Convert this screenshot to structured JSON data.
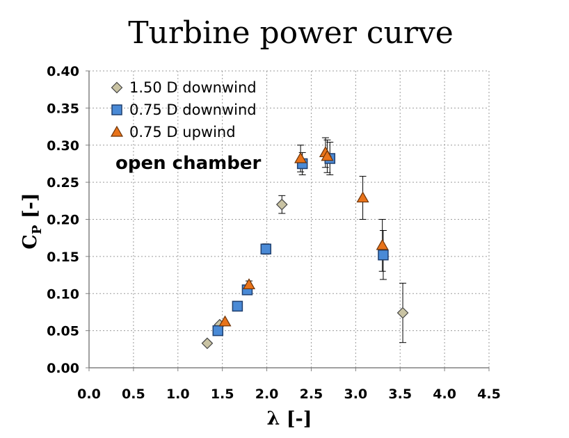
{
  "chart_data": {
    "type": "scatter",
    "title": "Turbine power curve",
    "xlabel": "λ [-]",
    "ylabel_main": "C",
    "ylabel_sub": "P",
    "ylabel_tail": " [-]",
    "xlim": [
      0.0,
      4.5
    ],
    "ylim": [
      0.0,
      0.4
    ],
    "x_ticks": [
      "0.0",
      "0.5",
      "1.0",
      "1.5",
      "2.0",
      "2.5",
      "3.0",
      "3.5",
      "4.0",
      "4.5"
    ],
    "y_ticks": [
      "0.00",
      "0.05",
      "0.10",
      "0.15",
      "0.20",
      "0.25",
      "0.30",
      "0.35",
      "0.40"
    ],
    "grid": "dotted",
    "legend_position": "top-left",
    "annotation": "open chamber",
    "series": [
      {
        "name": "1.50 D downwind",
        "marker": "diamond",
        "color": "#c9c3a3",
        "points": [
          {
            "x": 1.33,
            "y": 0.033
          },
          {
            "x": 1.47,
            "y": 0.058
          },
          {
            "x": 2.17,
            "y": 0.22,
            "err": 0.012
          },
          {
            "x": 3.53,
            "y": 0.074,
            "err": 0.04
          }
        ]
      },
      {
        "name": "0.75 D downwind",
        "marker": "square",
        "color": "#4a8ad6",
        "points": [
          {
            "x": 1.45,
            "y": 0.05
          },
          {
            "x": 1.67,
            "y": 0.083
          },
          {
            "x": 1.78,
            "y": 0.105
          },
          {
            "x": 1.99,
            "y": 0.16,
            "err": 0.007
          },
          {
            "x": 2.4,
            "y": 0.275,
            "err": 0.015
          },
          {
            "x": 2.71,
            "y": 0.282,
            "err": 0.022
          },
          {
            "x": 3.31,
            "y": 0.152,
            "err": 0.033
          }
        ]
      },
      {
        "name": "0.75 D upwind",
        "marker": "triangle",
        "color": "#e8731a",
        "points": [
          {
            "x": 1.53,
            "y": 0.062
          },
          {
            "x": 1.8,
            "y": 0.112,
            "err": 0.005
          },
          {
            "x": 2.38,
            "y": 0.282,
            "err": 0.018
          },
          {
            "x": 2.66,
            "y": 0.29,
            "err": 0.02
          },
          {
            "x": 2.68,
            "y": 0.285,
            "err": 0.022
          },
          {
            "x": 3.08,
            "y": 0.229,
            "err": 0.029
          },
          {
            "x": 3.3,
            "y": 0.165,
            "err": 0.035
          }
        ]
      }
    ]
  }
}
